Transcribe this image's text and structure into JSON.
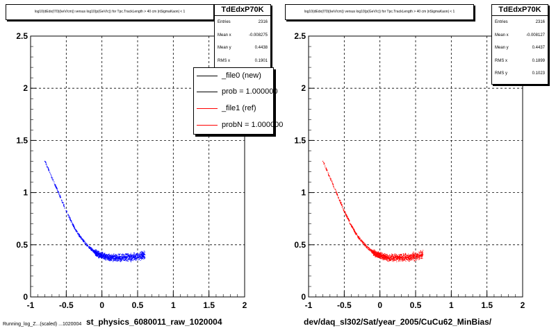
{
  "panels": [
    {
      "title": "log10(dEdx(I70)(keV/cm)) versus log10(p(GeV/c)) for Tpc.TrackLength > 40 cm |nSigmaKaon| < 1",
      "x_title": "st_physics_6080011_raw_1020004",
      "stats": {
        "name": "TdEdxP70K",
        "rows": [
          {
            "label": "Entries",
            "value": "2316"
          },
          {
            "label": "Mean x",
            "value": "-0.008275"
          },
          {
            "label": "Mean y",
            "value": "0.4438"
          },
          {
            "label": "RMS x",
            "value": "0.1901"
          }
        ]
      },
      "legend": [
        {
          "label": "_file0 (new)",
          "color": "#000000"
        },
        {
          "label": "prob = 1.000000",
          "color": "#000000"
        },
        {
          "label": "_file1 (ref)",
          "color": "#ff0000"
        },
        {
          "label": "probN = 1.000000",
          "color": "#ff0000"
        }
      ]
    },
    {
      "title": "log10(dEdx(I70)(keV/cm)) versus log10(p(GeV/c)) for Tpc.TrackLength > 40 cm |nSigmaKaon| < 1",
      "x_title": "dev/daq_sl302/Sat/year_2005/CuCu62_MinBias/",
      "stats": {
        "name": "TdEdxP70K",
        "rows": [
          {
            "label": "Entries",
            "value": "2316"
          },
          {
            "label": "Mean x",
            "value": "-0.008127"
          },
          {
            "label": "Mean y",
            "value": "0.4437"
          },
          {
            "label": "RMS x",
            "value": "0.1899"
          },
          {
            "label": "RMS y",
            "value": "0.1023"
          }
        ]
      }
    }
  ],
  "footer": "Running_log_Z...(scaled) ...1020004",
  "chart_data": [
    {
      "type": "scatter",
      "title": "log10(dEdx(I70)(keV/cm)) versus log10(p(GeV/c)) for Tpc.TrackLength > 40 cm |nSigmaKaon| < 1",
      "xlabel": "st_physics_6080011_raw_1020004",
      "ylabel": "",
      "xlim": [
        -1,
        2
      ],
      "ylim": [
        0,
        2.5
      ],
      "x_ticks": [
        "-1",
        "-0.5",
        "0",
        "0.5",
        "1",
        "1.5",
        "2"
      ],
      "y_ticks": [
        "0",
        "0.5",
        "1",
        "1.5",
        "2",
        "2.5"
      ],
      "grid": true,
      "series": [
        {
          "color": "#0000ff",
          "x": [
            -0.8,
            -0.75,
            -0.7,
            -0.65,
            -0.6,
            -0.55,
            -0.5,
            -0.45,
            -0.4,
            -0.35,
            -0.3,
            -0.25,
            -0.2,
            -0.15,
            -0.1,
            -0.05,
            0.0,
            0.05,
            0.1,
            0.15,
            0.2,
            0.25,
            0.3,
            0.35,
            0.4,
            0.45,
            0.5,
            0.55,
            0.6
          ],
          "y": [
            1.3,
            1.22,
            1.14,
            1.06,
            0.98,
            0.9,
            0.82,
            0.75,
            0.68,
            0.62,
            0.57,
            0.53,
            0.49,
            0.46,
            0.43,
            0.41,
            0.4,
            0.39,
            0.38,
            0.38,
            0.38,
            0.38,
            0.38,
            0.38,
            0.38,
            0.39,
            0.39,
            0.4,
            0.41
          ]
        }
      ]
    },
    {
      "type": "scatter",
      "title": "log10(dEdx(I70)(keV/cm)) versus log10(p(GeV/c)) for Tpc.TrackLength > 40 cm |nSigmaKaon| < 1",
      "xlabel": "dev/daq_sl302/Sat/year_2005/CuCu62_MinBias/",
      "ylabel": "",
      "xlim": [
        -1,
        2
      ],
      "ylim": [
        0,
        2.5
      ],
      "x_ticks": [
        "-1",
        "-0.5",
        "0",
        "0.5",
        "1",
        "1.5",
        "2"
      ],
      "y_ticks": [
        "0",
        "0.5",
        "1",
        "1.5",
        "2",
        "2.5"
      ],
      "grid": true,
      "series": [
        {
          "color": "#ff0000",
          "x": [
            -0.8,
            -0.75,
            -0.7,
            -0.65,
            -0.6,
            -0.55,
            -0.5,
            -0.45,
            -0.4,
            -0.35,
            -0.3,
            -0.25,
            -0.2,
            -0.15,
            -0.1,
            -0.05,
            0.0,
            0.05,
            0.1,
            0.15,
            0.2,
            0.25,
            0.3,
            0.35,
            0.4,
            0.45,
            0.5,
            0.55,
            0.6
          ],
          "y": [
            1.3,
            1.22,
            1.14,
            1.06,
            0.98,
            0.9,
            0.82,
            0.75,
            0.68,
            0.62,
            0.57,
            0.53,
            0.49,
            0.46,
            0.43,
            0.41,
            0.4,
            0.39,
            0.38,
            0.38,
            0.38,
            0.38,
            0.38,
            0.38,
            0.38,
            0.39,
            0.39,
            0.4,
            0.41
          ]
        }
      ]
    }
  ]
}
